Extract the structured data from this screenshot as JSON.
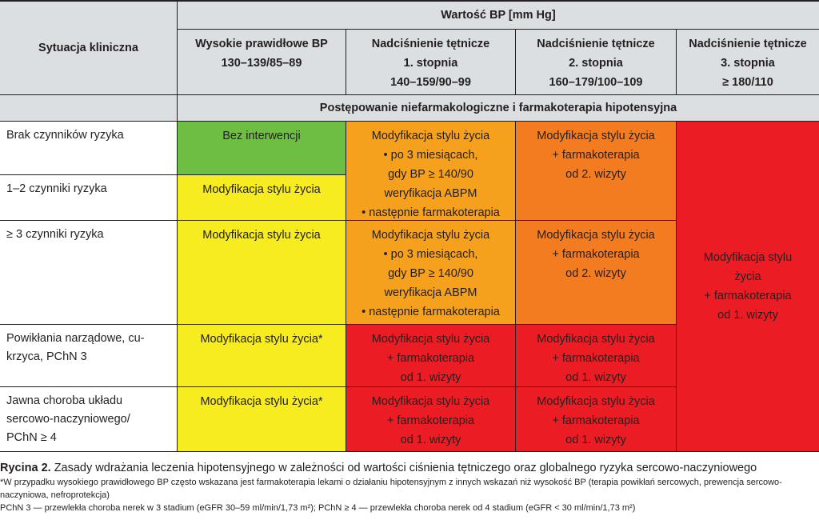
{
  "header": {
    "situation_label": "Sytuacja kliniczna",
    "bp_value_label": "Wartość BP [mm Hg]",
    "treatment_label": "Postępowanie niefarmakologiczne i farmakoterapia hipotensyjna",
    "columns": [
      "Wysokie prawidłowe BP\n130–139/85–89",
      "Nadciśnienie tętnicze\n1. stopnia\n140–159/90–99",
      "Nadciśnienie tętnicze\n2. stopnia\n160–179/100–109",
      "Nadciśnienie tętnicze\n3. stopnia\n≥ 180/110"
    ]
  },
  "rows": {
    "labels": [
      "Brak czynników ryzyka",
      "1–2 czynniki ryzyka",
      "≥ 3 czynniki ryzyka",
      "Powikłania narządowe, cu-\nkrzyca, PChN 3",
      "Jawna choroba układu\nsercowo-naczyniowego/\nPChN ≥ 4"
    ]
  },
  "cells": {
    "no_intervention": "Bez interwencji",
    "lifestyle": "Modyfikacja stylu życia",
    "lifestyle_star": "Modyfikacja stylu życia*",
    "lifestyle_3m": "Modyfikacja stylu życia\n• po 3 miesiącach,\ngdy BP ≥ 140/90\nweryfikacja ABPM\n• następnie farmakoterapia",
    "lifestyle_2visit": "Modyfikacja stylu życia\n+ farmakoterapia\nod 2. wizyty",
    "lifestyle_1visit": "Modyfikacja stylu życia\n+ farmakoterapia\nod 1. wizyty",
    "grade3": "Modyfikacja stylu\nżycia\n+ farmakoterapia\nod 1. wizyty"
  },
  "caption": {
    "label": "Rycina 2.",
    "title": " Zasady wdrażania leczenia hipotensyjnego w zależności od wartości ciśnienia tętniczego oraz globalnego ryzyka sercowo-naczyniowego",
    "note1": "*W przypadku wysokiego prawidłowego BP często wskazana jest farmakoterapia lekami o działaniu hipotensyjnym z innych wskazań niż wysokość BP (terapia powikłań sercowych, prewencja sercowo-naczyniowa, nefroprotekcja)",
    "note2": "PChN 3 — przewlekła choroba nerek w 3 stadium (eGFR 30–59 ml/min/1,73 m²); PChN ≥ 4 — przewlekła choroba nerek od 4 stadium (eGFR < 30 ml/min/1,73 m²)"
  },
  "colors": {
    "header_bg": "#dcdfe2",
    "green": "#6fbe44",
    "yellow": "#f6ec1f",
    "orange": "#f5a11e",
    "orange_dark": "#f37c20",
    "red": "#ec1c24"
  }
}
